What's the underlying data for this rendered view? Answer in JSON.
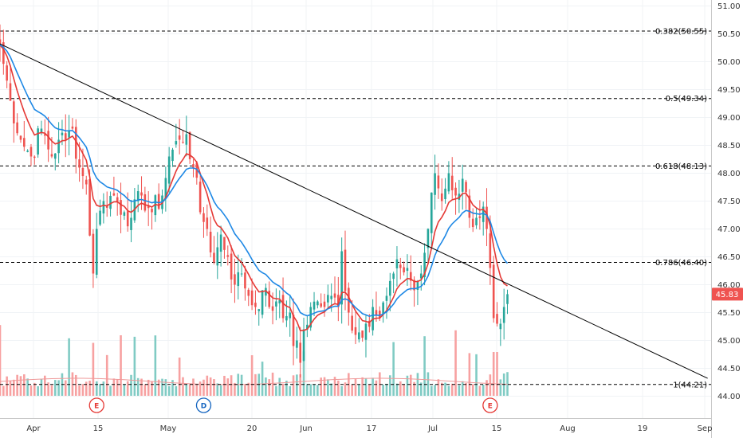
{
  "colors": {
    "up": "#26a69a",
    "down": "#ef5350",
    "vol_up": "#80cbc4",
    "vol_down": "#f7a1a1",
    "ma_fast": "#e53935",
    "ma_slow": "#1e88e5",
    "trendline": "#000000",
    "price_label_bg": "#ef5350"
  },
  "chart_data": {
    "type": "candlestick",
    "y_ticks": [
      "51.00",
      "50.50",
      "50.00",
      "49.50",
      "49.00",
      "48.50",
      "48.00",
      "47.50",
      "47.00",
      "46.50",
      "46.00",
      "45.50",
      "45.00",
      "44.50",
      "44.00"
    ],
    "ylim": [
      43.7,
      51.2
    ],
    "x_ticks": [
      "Apr",
      "15",
      "May",
      "20",
      "Jun",
      "17",
      "Jul",
      "15",
      "Aug",
      "19",
      "Sep"
    ],
    "current_price": "45.83",
    "fib_levels": [
      {
        "label": "0.382(50.55)",
        "value": 50.55
      },
      {
        "label": "0.5(49.34)",
        "value": 49.34
      },
      {
        "label": "0.618(48.13)",
        "value": 48.13
      },
      {
        "label": "0.786(46.40)",
        "value": 46.4
      },
      {
        "label": "1(44.21)",
        "value": 44.21
      }
    ],
    "trendline": {
      "start": {
        "date": "Mar 25",
        "price": 50.32
      },
      "end": {
        "date": "Sep 4",
        "price": 44.32
      }
    },
    "events": [
      {
        "label": "E",
        "date": "Apr 18",
        "kind": "earnings"
      },
      {
        "label": "D",
        "date": "May 15",
        "kind": "dividend"
      },
      {
        "label": "E",
        "date": "Jul 18",
        "kind": "earnings"
      }
    ],
    "anchors": [
      {
        "d": 0,
        "p": 50.3
      },
      {
        "d": 3,
        "p": 49.3
      },
      {
        "d": 6,
        "p": 48.6
      },
      {
        "d": 9,
        "p": 48.3
      },
      {
        "d": 12,
        "p": 48.8
      },
      {
        "d": 15,
        "p": 48.3
      },
      {
        "d": 17,
        "p": 48.6
      },
      {
        "d": 19,
        "p": 48.6
      },
      {
        "d": 21,
        "p": 48.8
      },
      {
        "d": 23,
        "p": 48.1
      },
      {
        "d": 25,
        "p": 47.8
      },
      {
        "d": 27,
        "p": 46.2
      },
      {
        "d": 28,
        "p": 47.0
      },
      {
        "d": 30,
        "p": 47.5
      },
      {
        "d": 33,
        "p": 47.6
      },
      {
        "d": 36,
        "p": 47.3
      },
      {
        "d": 38,
        "p": 47.2
      },
      {
        "d": 41,
        "p": 47.6
      },
      {
        "d": 44,
        "p": 47.3
      },
      {
        "d": 47,
        "p": 47.6
      },
      {
        "d": 49,
        "p": 48.3
      },
      {
        "d": 52,
        "p": 48.6
      },
      {
        "d": 54,
        "p": 48.7
      },
      {
        "d": 56,
        "p": 48.1
      },
      {
        "d": 58,
        "p": 47.3
      },
      {
        "d": 60,
        "p": 47.0
      },
      {
        "d": 62,
        "p": 46.4
      },
      {
        "d": 64,
        "p": 46.9
      },
      {
        "d": 66,
        "p": 46.5
      },
      {
        "d": 68,
        "p": 46.0
      },
      {
        "d": 70,
        "p": 46.2
      },
      {
        "d": 72,
        "p": 45.8
      },
      {
        "d": 74,
        "p": 45.6
      },
      {
        "d": 76,
        "p": 45.9
      },
      {
        "d": 78,
        "p": 45.6
      },
      {
        "d": 80,
        "p": 45.7
      },
      {
        "d": 82,
        "p": 45.4
      },
      {
        "d": 84,
        "p": 45.5
      },
      {
        "d": 85,
        "p": 44.9
      },
      {
        "d": 86,
        "p": 45.0
      },
      {
        "d": 87,
        "p": 44.6
      },
      {
        "d": 88,
        "p": 45.2
      },
      {
        "d": 90,
        "p": 45.6
      },
      {
        "d": 92,
        "p": 45.7
      },
      {
        "d": 94,
        "p": 45.6
      },
      {
        "d": 96,
        "p": 45.8
      },
      {
        "d": 98,
        "p": 45.6
      },
      {
        "d": 99,
        "p": 46.6
      },
      {
        "d": 101,
        "p": 45.5
      },
      {
        "d": 103,
        "p": 45.1
      },
      {
        "d": 106,
        "p": 45.3
      },
      {
        "d": 108,
        "p": 45.6
      },
      {
        "d": 110,
        "p": 45.4
      },
      {
        "d": 112,
        "p": 45.8
      },
      {
        "d": 114,
        "p": 46.2
      },
      {
        "d": 116,
        "p": 46.3
      },
      {
        "d": 118,
        "p": 46.3
      },
      {
        "d": 120,
        "p": 45.9
      },
      {
        "d": 122,
        "p": 46.2
      },
      {
        "d": 124,
        "p": 47.0
      },
      {
        "d": 126,
        "p": 48.0
      },
      {
        "d": 128,
        "p": 47.5
      },
      {
        "d": 130,
        "p": 48.0
      },
      {
        "d": 132,
        "p": 47.6
      },
      {
        "d": 134,
        "p": 47.9
      },
      {
        "d": 136,
        "p": 47.2
      },
      {
        "d": 138,
        "p": 47.2
      },
      {
        "d": 140,
        "p": 47.4
      },
      {
        "d": 141,
        "p": 47.0
      },
      {
        "d": 142,
        "p": 46.3
      },
      {
        "d": 143,
        "p": 45.4
      },
      {
        "d": 144,
        "p": 45.3
      },
      {
        "d": 145,
        "p": 45.3
      },
      {
        "d": 146,
        "p": 45.6
      },
      {
        "d": 147,
        "p": 45.83
      }
    ]
  }
}
